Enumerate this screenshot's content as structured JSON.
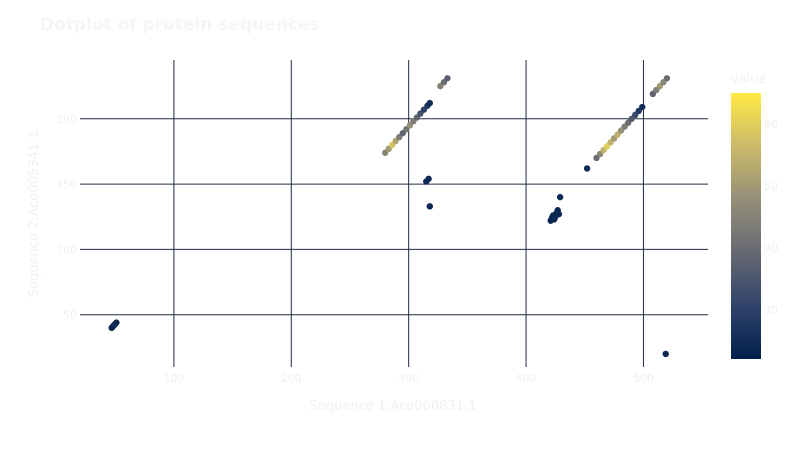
{
  "chart_data": {
    "type": "scatter",
    "title": "Dotplot of protein sequences",
    "xlabel": "Sequence 1:Aco000831.1",
    "ylabel": "Sequence 2:Aco005341.1",
    "xlim": [
      20,
      555
    ],
    "ylim": [
      10,
      245
    ],
    "x_ticks": [
      100,
      200,
      300,
      400,
      500
    ],
    "y_ticks": [
      50,
      100,
      150,
      200
    ],
    "grid": true,
    "colorscale": {
      "title": "value",
      "min": 22,
      "max": 65,
      "ticks": [
        30,
        40,
        50,
        60
      ],
      "colors": [
        "#00204c",
        "#31446b",
        "#666970",
        "#958f78",
        "#cbba69",
        "#ffe945"
      ]
    },
    "points": [
      {
        "x": 47,
        "y": 40,
        "v": 24
      },
      {
        "x": 48,
        "y": 41,
        "v": 24
      },
      {
        "x": 49,
        "y": 42,
        "v": 24
      },
      {
        "x": 50,
        "y": 43,
        "v": 25
      },
      {
        "x": 51,
        "y": 44,
        "v": 24
      },
      {
        "x": 280,
        "y": 174,
        "v": 45
      },
      {
        "x": 283,
        "y": 177,
        "v": 50
      },
      {
        "x": 286,
        "y": 180,
        "v": 58
      },
      {
        "x": 289,
        "y": 183,
        "v": 52
      },
      {
        "x": 292,
        "y": 186,
        "v": 44
      },
      {
        "x": 295,
        "y": 189,
        "v": 38
      },
      {
        "x": 298,
        "y": 192,
        "v": 42
      },
      {
        "x": 301,
        "y": 195,
        "v": 48
      },
      {
        "x": 304,
        "y": 198,
        "v": 44
      },
      {
        "x": 307,
        "y": 201,
        "v": 38
      },
      {
        "x": 310,
        "y": 204,
        "v": 34
      },
      {
        "x": 313,
        "y": 207,
        "v": 30
      },
      {
        "x": 316,
        "y": 210,
        "v": 27
      },
      {
        "x": 318,
        "y": 212,
        "v": 25
      },
      {
        "x": 327,
        "y": 225,
        "v": 45
      },
      {
        "x": 330,
        "y": 228,
        "v": 40
      },
      {
        "x": 333,
        "y": 231,
        "v": 37
      },
      {
        "x": 315,
        "y": 152,
        "v": 24
      },
      {
        "x": 317,
        "y": 154,
        "v": 24
      },
      {
        "x": 318,
        "y": 133,
        "v": 24
      },
      {
        "x": 421,
        "y": 122,
        "v": 24
      },
      {
        "x": 422,
        "y": 124,
        "v": 24
      },
      {
        "x": 423,
        "y": 126,
        "v": 24
      },
      {
        "x": 424,
        "y": 123,
        "v": 24
      },
      {
        "x": 425,
        "y": 125,
        "v": 24
      },
      {
        "x": 426,
        "y": 128,
        "v": 24
      },
      {
        "x": 427,
        "y": 130,
        "v": 24
      },
      {
        "x": 428,
        "y": 127,
        "v": 24
      },
      {
        "x": 429,
        "y": 140,
        "v": 24
      },
      {
        "x": 452,
        "y": 162,
        "v": 24
      },
      {
        "x": 460,
        "y": 170,
        "v": 40
      },
      {
        "x": 463,
        "y": 173,
        "v": 46
      },
      {
        "x": 466,
        "y": 176,
        "v": 55
      },
      {
        "x": 469,
        "y": 179,
        "v": 60
      },
      {
        "x": 472,
        "y": 182,
        "v": 55
      },
      {
        "x": 475,
        "y": 185,
        "v": 50
      },
      {
        "x": 478,
        "y": 188,
        "v": 54
      },
      {
        "x": 481,
        "y": 191,
        "v": 48
      },
      {
        "x": 484,
        "y": 194,
        "v": 44
      },
      {
        "x": 487,
        "y": 197,
        "v": 40
      },
      {
        "x": 490,
        "y": 200,
        "v": 36
      },
      {
        "x": 493,
        "y": 203,
        "v": 32
      },
      {
        "x": 496,
        "y": 206,
        "v": 28
      },
      {
        "x": 499,
        "y": 209,
        "v": 25
      },
      {
        "x": 508,
        "y": 219,
        "v": 38
      },
      {
        "x": 511,
        "y": 222,
        "v": 44
      },
      {
        "x": 514,
        "y": 225,
        "v": 50
      },
      {
        "x": 517,
        "y": 228,
        "v": 46
      },
      {
        "x": 520,
        "y": 231,
        "v": 40
      },
      {
        "x": 519,
        "y": 20,
        "v": 24
      }
    ]
  }
}
